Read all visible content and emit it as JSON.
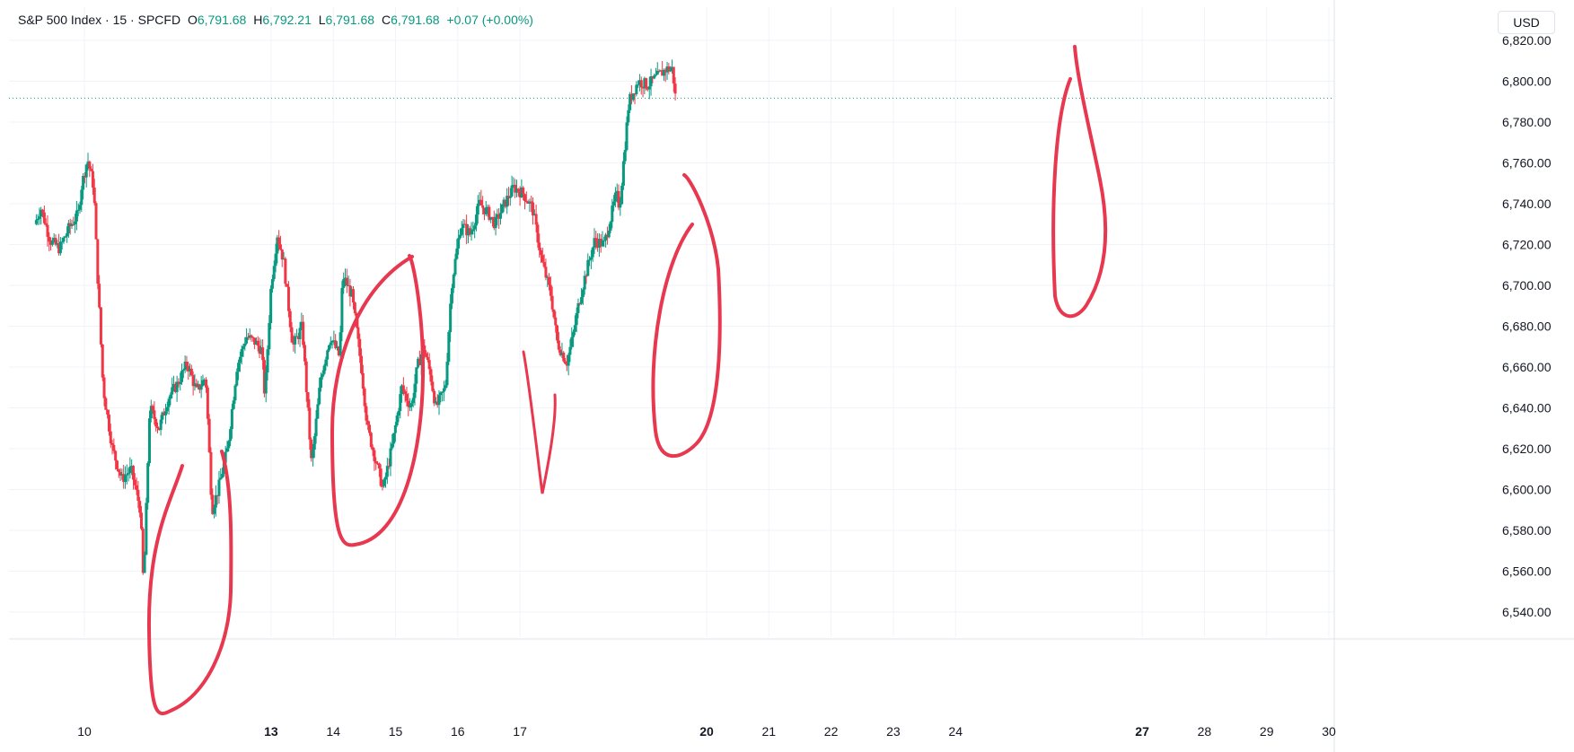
{
  "legend": {
    "symbol": "S&P 500 Index · 15 · SPCFD",
    "open_label": "O",
    "open": "6,791.68",
    "high_label": "H",
    "high": "6,792.21",
    "low_label": "L",
    "low": "6,791.68",
    "close_label": "C",
    "close": "6,791.68",
    "change": "+0.07 (+0.00%)"
  },
  "currency_button": "USD",
  "colors": {
    "up": "#089981",
    "down": "#f23645",
    "annotation": "#e8384f",
    "grid": "#f0f3fa"
  },
  "chart_data": {
    "type": "candlestick",
    "title": "S&P 500 Index · 15 · SPCFD",
    "ylim": [
      6525,
      6828
    ],
    "y_ticks": [
      "6,540.00",
      "6,560.00",
      "6,580.00",
      "6,600.00",
      "6,620.00",
      "6,640.00",
      "6,660.00",
      "6,680.00",
      "6,700.00",
      "6,720.00",
      "6,740.00",
      "6,760.00",
      "6,780.00",
      "6,800.00",
      "6,820.00"
    ],
    "y_tick_values": [
      6540,
      6560,
      6580,
      6600,
      6620,
      6640,
      6660,
      6680,
      6700,
      6720,
      6740,
      6760,
      6780,
      6800,
      6820
    ],
    "x_ticks": [
      {
        "label": "10",
        "bold": false,
        "x": 10
      },
      {
        "label": "13",
        "bold": true,
        "x": 13
      },
      {
        "label": "14",
        "bold": false,
        "x": 14
      },
      {
        "label": "15",
        "bold": false,
        "x": 15
      },
      {
        "label": "16",
        "bold": false,
        "x": 16
      },
      {
        "label": "17",
        "bold": false,
        "x": 17
      },
      {
        "label": "20",
        "bold": true,
        "x": 20
      },
      {
        "label": "21",
        "bold": false,
        "x": 21
      },
      {
        "label": "22",
        "bold": false,
        "x": 22
      },
      {
        "label": "23",
        "bold": false,
        "x": 23
      },
      {
        "label": "24",
        "bold": false,
        "x": 24
      },
      {
        "label": "27",
        "bold": true,
        "x": 27
      },
      {
        "label": "28",
        "bold": false,
        "x": 28
      },
      {
        "label": "29",
        "bold": false,
        "x": 29
      },
      {
        "label": "30",
        "bold": false,
        "x": 30
      }
    ],
    "xlim": [
      9.2,
      30
    ],
    "last_price": 6791.68,
    "price_path": [
      [
        9.2,
        6730
      ],
      [
        9.3,
        6738
      ],
      [
        9.45,
        6722
      ],
      [
        9.6,
        6718
      ],
      [
        9.75,
        6728
      ],
      [
        9.9,
        6735
      ],
      [
        9.95,
        6748
      ],
      [
        10.05,
        6762
      ],
      [
        10.15,
        6748
      ],
      [
        10.2,
        6712
      ],
      [
        10.3,
        6650
      ],
      [
        10.45,
        6620
      ],
      [
        10.6,
        6605
      ],
      [
        10.75,
        6610
      ],
      [
        10.9,
        6590
      ],
      [
        10.95,
        6552
      ],
      [
        11.05,
        6640
      ],
      [
        11.2,
        6630
      ],
      [
        11.35,
        6645
      ],
      [
        11.5,
        6652
      ],
      [
        11.65,
        6662
      ],
      [
        11.8,
        6648
      ],
      [
        11.95,
        6655
      ],
      [
        12.05,
        6590
      ],
      [
        12.15,
        6600
      ],
      [
        12.3,
        6620
      ],
      [
        12.45,
        6660
      ],
      [
        12.6,
        6675
      ],
      [
        12.75,
        6672
      ],
      [
        12.85,
        6668
      ],
      [
        12.9,
        6645
      ],
      [
        13.0,
        6700
      ],
      [
        13.1,
        6725
      ],
      [
        13.2,
        6712
      ],
      [
        13.35,
        6670
      ],
      [
        13.5,
        6680
      ],
      [
        13.65,
        6612
      ],
      [
        13.8,
        6655
      ],
      [
        13.95,
        6675
      ],
      [
        14.1,
        6665
      ],
      [
        14.15,
        6705
      ],
      [
        14.3,
        6695
      ],
      [
        14.45,
        6660
      ],
      [
        14.55,
        6630
      ],
      [
        14.7,
        6612
      ],
      [
        14.8,
        6600
      ],
      [
        14.95,
        6622
      ],
      [
        15.1,
        6650
      ],
      [
        15.25,
        6640
      ],
      [
        15.35,
        6660
      ],
      [
        15.45,
        6670
      ],
      [
        15.55,
        6658
      ],
      [
        15.65,
        6640
      ],
      [
        15.8,
        6650
      ],
      [
        15.9,
        6700
      ],
      [
        16.05,
        6730
      ],
      [
        16.2,
        6725
      ],
      [
        16.35,
        6740
      ],
      [
        16.5,
        6735
      ],
      [
        16.6,
        6730
      ],
      [
        16.75,
        6740
      ],
      [
        16.9,
        6748
      ],
      [
        17.05,
        6745
      ],
      [
        17.2,
        6738
      ],
      [
        17.35,
        6712
      ],
      [
        17.5,
        6695
      ],
      [
        17.6,
        6672
      ],
      [
        17.75,
        6662
      ],
      [
        17.85,
        6675
      ],
      [
        17.95,
        6692
      ],
      [
        18.05,
        6705
      ],
      [
        18.2,
        6722
      ],
      [
        18.35,
        6720
      ],
      [
        18.45,
        6732
      ],
      [
        18.55,
        6745
      ],
      [
        18.6,
        6738
      ],
      [
        18.75,
        6790
      ],
      [
        18.9,
        6800
      ],
      [
        19.05,
        6798
      ],
      [
        19.2,
        6802
      ],
      [
        19.35,
        6806
      ],
      [
        19.45,
        6806
      ],
      [
        19.5,
        6791.68
      ]
    ]
  }
}
